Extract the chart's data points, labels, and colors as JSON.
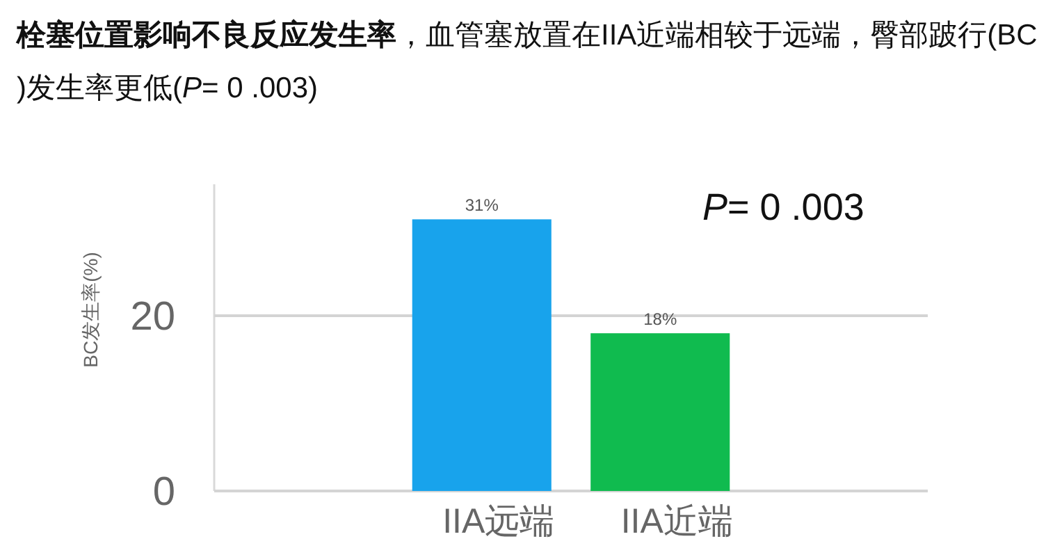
{
  "chart_data": {
    "type": "bar",
    "title": "**栓塞位置影响不良反应发生率**，血管塞放置在IIA近端相较于远端，臀部跛行(BC)发生率更低(*P*= 0 .003)",
    "ylabel": "BC发生率(%)",
    "categories": [
      "IIA远端",
      "IIA近端"
    ],
    "colors": [
      "#18a3ec",
      "#10bb4f"
    ],
    "values": [
      31,
      18
    ],
    "value_labels": [
      "31%",
      "18%"
    ],
    "ylim": [
      0,
      35
    ],
    "yticks": [
      0,
      20
    ],
    "grid": "y",
    "annotations": [
      "*P*= 0 .003"
    ]
  }
}
